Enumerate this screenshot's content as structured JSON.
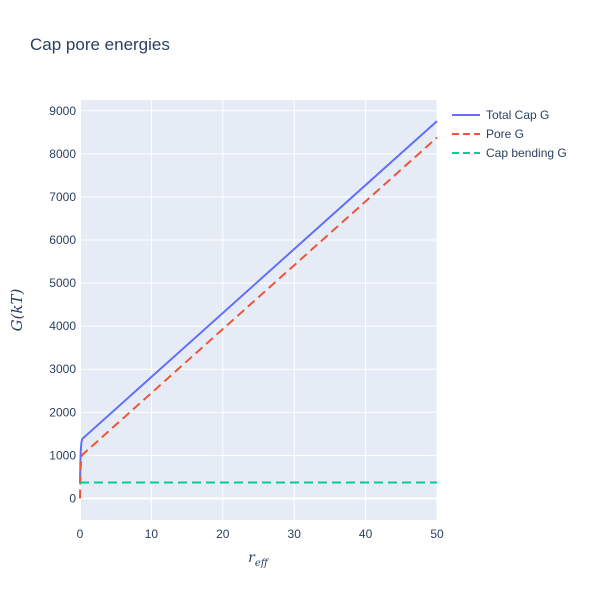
{
  "chart_data": {
    "type": "line",
    "title": "Cap pore energies",
    "xlabel": "r_eff",
    "ylabel": "G(kT)",
    "xlim": [
      0,
      50
    ],
    "ylim": [
      -500,
      9250
    ],
    "x_ticks": [
      0,
      10,
      20,
      30,
      40,
      50
    ],
    "y_ticks": [
      0,
      1000,
      2000,
      3000,
      4000,
      5000,
      6000,
      7000,
      8000,
      9000
    ],
    "grid": true,
    "plot_background": "#e5ecf6",
    "legend_position": "top-right",
    "series": [
      {
        "name": "Total Cap G",
        "color": "#636efa",
        "dash": "solid",
        "x": [
          0,
          0.05,
          0.1,
          0.2,
          0.3,
          50
        ],
        "y": [
          370,
          800,
          1100,
          1300,
          1380,
          8760
        ]
      },
      {
        "name": "Pore G",
        "color": "#ef553b",
        "dash": "dash",
        "x": [
          0,
          0.05,
          0.1,
          0.2,
          0.3,
          50
        ],
        "y": [
          0,
          430,
          730,
          930,
          1010,
          8380
        ]
      },
      {
        "name": "Cap bending G",
        "color": "#00cc96",
        "dash": "dash",
        "x": [
          0,
          50
        ],
        "y": [
          370,
          370
        ]
      }
    ]
  }
}
